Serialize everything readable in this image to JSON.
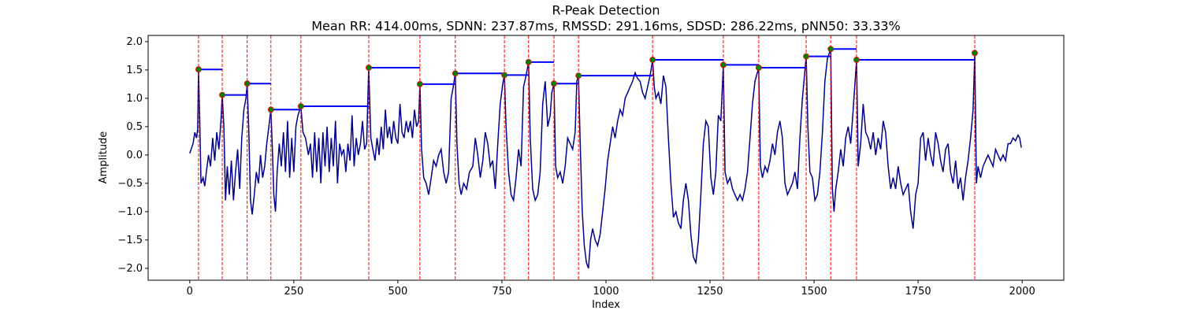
{
  "chart_data": {
    "type": "line",
    "title": "R-Peak Detection",
    "subtitle": "Mean RR: 414.00ms, SDNN: 237.87ms, RMSSD: 291.16ms, SDSD: 286.22ms, pNN50: 33.33%",
    "xlabel": "Index",
    "ylabel": "Amplitude",
    "xlim": [
      -100,
      2100
    ],
    "ylim": [
      -2.21,
      2.11
    ],
    "xticks": [
      0,
      250,
      500,
      750,
      1000,
      1250,
      1500,
      1750,
      2000
    ],
    "yticks": [
      {
        "value": -2,
        "label": "−2.0"
      },
      {
        "value": -1.5,
        "label": "−1.5"
      },
      {
        "value": -1,
        "label": "−1.0"
      },
      {
        "value": -0.5,
        "label": "−0.5"
      },
      {
        "value": 0,
        "label": "0.0"
      },
      {
        "value": 0.5,
        "label": "0.5"
      },
      {
        "value": 1,
        "label": "1.0"
      },
      {
        "value": 1.5,
        "label": "1.5"
      },
      {
        "value": 2,
        "label": "2.0"
      }
    ],
    "signal": {
      "color": "#00008b",
      "x": [
        0,
        8,
        12,
        16,
        19,
        21,
        24,
        27,
        32,
        36,
        40,
        45,
        50,
        55,
        60,
        65,
        70,
        75,
        78,
        82,
        86,
        90,
        95,
        100,
        105,
        110,
        115,
        120,
        125,
        130,
        135,
        138,
        142,
        146,
        150,
        155,
        160,
        165,
        170,
        175,
        180,
        185,
        190,
        195,
        198,
        202,
        206,
        210,
        215,
        220,
        225,
        230,
        235,
        240,
        245,
        250,
        255,
        260,
        267,
        272,
        278,
        285,
        290,
        295,
        300,
        305,
        310,
        315,
        320,
        325,
        330,
        335,
        340,
        345,
        350,
        355,
        360,
        365,
        370,
        375,
        380,
        385,
        390,
        395,
        400,
        405,
        410,
        415,
        420,
        425,
        430,
        435,
        440,
        445,
        450,
        455,
        460,
        465,
        470,
        475,
        480,
        485,
        490,
        495,
        500,
        505,
        510,
        515,
        520,
        525,
        530,
        535,
        540,
        545,
        550,
        553,
        557,
        562,
        568,
        574,
        580,
        586,
        592,
        598,
        604,
        610,
        616,
        622,
        628,
        633,
        638,
        642,
        647,
        652,
        658,
        665,
        672,
        680,
        686,
        692,
        698,
        704,
        710,
        716,
        722,
        728,
        734,
        740,
        746,
        752,
        756,
        760,
        766,
        772,
        778,
        784,
        790,
        796,
        802,
        808,
        814,
        818,
        824,
        830,
        836,
        842,
        848,
        854,
        860,
        866,
        870,
        875,
        879,
        884,
        890,
        896,
        902,
        908,
        914,
        920,
        926,
        930,
        934,
        938,
        943,
        948,
        953,
        958,
        963,
        968,
        974,
        980,
        986,
        992,
        998,
        1004,
        1010,
        1016,
        1022,
        1028,
        1034,
        1040,
        1046,
        1052,
        1058,
        1064,
        1070,
        1076,
        1082,
        1088,
        1094,
        1100,
        1106,
        1112,
        1116,
        1120,
        1126,
        1132,
        1138,
        1144,
        1150,
        1156,
        1162,
        1168,
        1174,
        1180,
        1186,
        1192,
        1198,
        1204,
        1210,
        1216,
        1222,
        1228,
        1234,
        1240,
        1246,
        1252,
        1258,
        1264,
        1270,
        1276,
        1282,
        1286,
        1292,
        1298,
        1304,
        1310,
        1316,
        1322,
        1328,
        1334,
        1340,
        1346,
        1352,
        1358,
        1367,
        1371,
        1376,
        1382,
        1388,
        1394,
        1400,
        1406,
        1412,
        1418,
        1424,
        1430,
        1436,
        1442,
        1448,
        1454,
        1460,
        1466,
        1472,
        1481,
        1485,
        1490,
        1496,
        1502,
        1508,
        1514,
        1520,
        1526,
        1532,
        1540,
        1544,
        1548,
        1552,
        1558,
        1564,
        1570,
        1576,
        1582,
        1588,
        1594,
        1602,
        1606,
        1612,
        1618,
        1624,
        1630,
        1636,
        1642,
        1648,
        1654,
        1660,
        1666,
        1672,
        1678,
        1684,
        1690,
        1696,
        1702,
        1708,
        1714,
        1720,
        1726,
        1732,
        1738,
        1744,
        1750,
        1756,
        1762,
        1768,
        1774,
        1780,
        1786,
        1792,
        1798,
        1804,
        1810,
        1816,
        1822,
        1828,
        1834,
        1840,
        1846,
        1852,
        1858,
        1864,
        1870,
        1876,
        1882,
        1886,
        1890,
        1894,
        1900,
        1906,
        1912,
        1918,
        1924,
        1930,
        1936,
        1942,
        1948,
        1954,
        1960,
        1966,
        1972,
        1978,
        1984,
        1990,
        1994,
        1998
      ],
      "values": [
        0.03,
        0.2,
        0.4,
        0.3,
        0.45,
        1.51,
        0.6,
        -0.5,
        -0.4,
        -0.55,
        -0.3,
        0.0,
        -0.2,
        0.3,
        -0.1,
        0.4,
        0.1,
        0.6,
        1.06,
        0.5,
        -0.8,
        -0.2,
        -0.7,
        -0.1,
        -0.8,
        -0.3,
        0.1,
        -0.6,
        0.3,
        0.8,
        1.0,
        1.26,
        0.4,
        -0.8,
        -1.05,
        -0.7,
        -0.3,
        -0.5,
        0.0,
        -0.4,
        -0.2,
        0.2,
        0.5,
        0.8,
        0.2,
        -0.7,
        -1.0,
        -0.3,
        0.2,
        -0.2,
        0.4,
        -0.3,
        0.6,
        -0.4,
        0.3,
        -0.3,
        0.5,
        0.7,
        0.86,
        0.4,
        0.3,
        0.0,
        0.2,
        -0.4,
        0.4,
        -0.3,
        0.3,
        -0.5,
        0.4,
        -0.2,
        0.5,
        -0.3,
        0.3,
        -0.2,
        0.6,
        -0.5,
        0.2,
        0.0,
        0.1,
        -0.3,
        0.2,
        -0.1,
        0.7,
        -0.2,
        0.3,
        0.0,
        0.2,
        0.6,
        0.1,
        0.2,
        1.54,
        0.3,
        0.1,
        -0.1,
        0.3,
        0.0,
        0.5,
        0.1,
        0.8,
        0.3,
        0.5,
        0.2,
        0.6,
        0.3,
        0.2,
        0.9,
        0.4,
        0.3,
        0.6,
        0.4,
        0.6,
        0.3,
        0.8,
        0.5,
        0.6,
        1.25,
        0.1,
        -0.4,
        -0.5,
        -0.7,
        -0.4,
        -0.1,
        -0.2,
        0.0,
        0.1,
        -0.3,
        -0.5,
        -0.3,
        1.0,
        1.2,
        1.44,
        0.2,
        -0.5,
        -0.7,
        -0.5,
        -0.6,
        -0.3,
        -0.2,
        0.3,
        0.0,
        -0.4,
        -0.1,
        0.4,
        0.2,
        -0.2,
        -0.1,
        -0.6,
        0.2,
        0.9,
        1.25,
        1.41,
        0.5,
        -0.3,
        -0.7,
        -0.8,
        -0.4,
        0.1,
        -0.2,
        1.2,
        1.4,
        1.64,
        0.3,
        -0.6,
        -0.8,
        -0.7,
        -0.3,
        0.9,
        1.3,
        0.5,
        0.7,
        1.1,
        1.26,
        -0.2,
        -0.4,
        -0.3,
        -0.5,
        -0.2,
        0.3,
        0.2,
        0.1,
        0.4,
        1.3,
        1.4,
        0.2,
        -1.0,
        -1.6,
        -1.9,
        -2.0,
        -1.5,
        -1.3,
        -1.5,
        -1.6,
        -1.4,
        -1.0,
        -0.6,
        -0.1,
        0.2,
        0.5,
        0.3,
        0.6,
        0.8,
        0.7,
        1.0,
        1.1,
        1.2,
        1.3,
        1.45,
        1.35,
        1.3,
        1.1,
        1.0,
        1.2,
        1.4,
        1.68,
        1.2,
        1.0,
        1.1,
        0.9,
        1.4,
        1.2,
        0.3,
        -0.5,
        -1.1,
        -1.0,
        -1.2,
        -1.3,
        -0.8,
        -0.5,
        -0.8,
        -1.4,
        -1.8,
        -1.9,
        -1.5,
        -0.7,
        0.2,
        0.6,
        0.5,
        -0.4,
        -0.7,
        -0.3,
        0.7,
        0.6,
        1.59,
        -0.3,
        -0.5,
        -0.4,
        -0.6,
        -0.7,
        -0.8,
        -0.7,
        -0.8,
        -0.6,
        -0.3,
        0.3,
        0.9,
        1.3,
        1.54,
        -0.2,
        -0.4,
        -0.2,
        -0.3,
        -0.1,
        0.2,
        0.0,
        0.4,
        0.6,
        0.3,
        -0.5,
        -0.7,
        -0.6,
        -0.5,
        -0.3,
        -0.6,
        0.3,
        1.0,
        1.74,
        0.5,
        -0.3,
        -0.4,
        -0.8,
        -0.7,
        -0.3,
        0.4,
        1.3,
        1.7,
        1.87,
        -0.6,
        -1.0,
        -0.6,
        -0.3,
        0.1,
        -0.2,
        0.3,
        0.5,
        0.2,
        0.8,
        1.68,
        -0.2,
        0.2,
        0.9,
        0.4,
        0.3,
        0.1,
        0.4,
        0.0,
        0.3,
        0.1,
        0.6,
        0.4,
        -0.2,
        -0.6,
        -0.4,
        -0.6,
        -0.2,
        -0.5,
        -0.7,
        -0.6,
        -0.5,
        -1.0,
        -1.3,
        -0.7,
        -0.5,
        0.3,
        0.4,
        -0.1,
        0.3,
        0.0,
        -0.2,
        0.4,
        0.2,
        -0.1,
        -0.3,
        0.1,
        0.2,
        -0.3,
        -0.5,
        -0.1,
        -0.6,
        -0.4,
        -0.8,
        -0.4,
        -0.1,
        0.3,
        0.8,
        1.8,
        -0.5,
        -0.2,
        -0.4,
        -0.2,
        -0.1,
        0.0,
        -0.1,
        -0.2,
        0.1,
        0.0,
        -0.1,
        0.0,
        -0.1,
        0.2,
        0.2,
        0.3,
        0.25,
        0.35,
        0.3,
        0.13
      ]
    },
    "peaks": {
      "color": "green",
      "line_color": "red",
      "level_color": "blue",
      "x": [
        21,
        78,
        138,
        195,
        267,
        430,
        553,
        638,
        756,
        814,
        875,
        934,
        1112,
        1282,
        1367,
        1481,
        1540,
        1602,
        1886
      ],
      "values": [
        1.51,
        1.06,
        1.26,
        0.8,
        0.86,
        1.54,
        1.25,
        1.44,
        1.41,
        1.64,
        1.26,
        1.4,
        1.68,
        1.59,
        1.54,
        1.74,
        1.87,
        1.68,
        1.8
      ]
    }
  }
}
